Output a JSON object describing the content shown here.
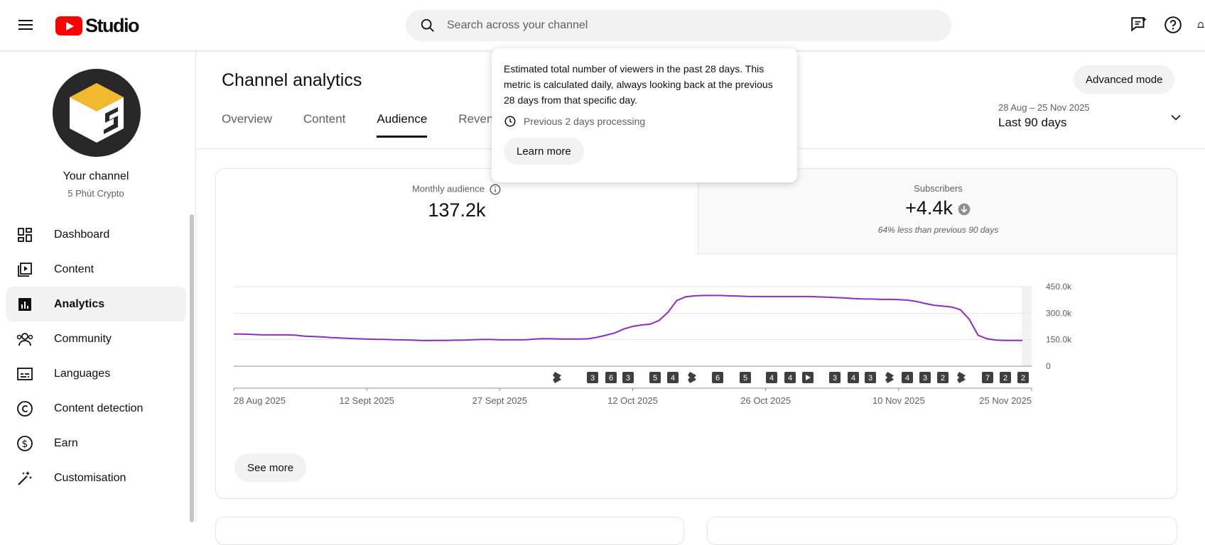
{
  "app": {
    "logo_text": "Studio"
  },
  "search": {
    "placeholder": "Search across your channel"
  },
  "channel": {
    "name": "Your channel",
    "handle": "5 Phút Crypto"
  },
  "sidebar": {
    "items": [
      {
        "label": "Dashboard",
        "icon": "dashboard-icon",
        "active": false
      },
      {
        "label": "Content",
        "icon": "content-icon",
        "active": false
      },
      {
        "label": "Analytics",
        "icon": "analytics-icon",
        "active": true
      },
      {
        "label": "Community",
        "icon": "community-icon",
        "active": false
      },
      {
        "label": "Languages",
        "icon": "languages-icon",
        "active": false
      },
      {
        "label": "Content detection",
        "icon": "copyright-icon",
        "active": false
      },
      {
        "label": "Earn",
        "icon": "earn-icon",
        "active": false
      },
      {
        "label": "Customisation",
        "icon": "customisation-icon",
        "active": false
      }
    ]
  },
  "page": {
    "title": "Channel analytics",
    "advanced_mode_label": "Advanced mode",
    "tabs": [
      {
        "label": "Overview",
        "active": false
      },
      {
        "label": "Content",
        "active": false
      },
      {
        "label": "Audience",
        "active": true
      },
      {
        "label": "Revenu",
        "active": false
      }
    ],
    "date_range": {
      "dates": "28 Aug – 25 Nov 2025",
      "label": "Last 90 days"
    }
  },
  "metrics": {
    "monthly_audience": {
      "label": "Monthly audience",
      "value": "137.2k"
    },
    "subscribers": {
      "label": "Subscribers",
      "value": "+4.4k",
      "note": "64% less than previous 90 days"
    }
  },
  "tooltip": {
    "text": "Estimated total number of viewers in the past 28 days. This metric is calculated daily, always looking back at the previous 28 days from that specific day.",
    "processing": "Previous 2 days processing",
    "learn_more_label": "Learn more"
  },
  "see_more_label": "See more",
  "colors": {
    "line": "#8a2ec0",
    "accent": "#ff0000"
  },
  "chart_data": {
    "type": "line",
    "xlabels": [
      "28 Aug 2025",
      "12 Sept 2025",
      "27 Sept 2025",
      "12 Oct 2025",
      "26 Oct 2025",
      "10 Nov 2025",
      "25 Nov 2025"
    ],
    "yticks": [
      "450.0k",
      "300.0k",
      "150.0k",
      "0"
    ],
    "ylim": [
      0,
      450000
    ],
    "grid": true,
    "series": [
      {
        "values": [
          182000,
          182000,
          180000,
          178000,
          177000,
          177000,
          177000,
          175000,
          170000,
          168000,
          166000,
          162000,
          160000,
          157000,
          155000,
          154000,
          152000,
          152000,
          150000,
          149000,
          148000,
          146000,
          145000,
          146000,
          146000,
          147000,
          148000,
          150000,
          151000,
          151000,
          149000,
          149000,
          149000,
          150000,
          154000,
          156000,
          155000,
          154000,
          154000,
          154000,
          155000,
          163000,
          175000,
          188000,
          210000,
          225000,
          233000,
          238000,
          259000,
          305000,
          372000,
          393000,
          398000,
          400000,
          400000,
          400000,
          398000,
          397000,
          395000,
          394000,
          394000,
          394000,
          394000,
          394000,
          394000,
          394000,
          392000,
          391000,
          388000,
          386000,
          383000,
          381000,
          380000,
          378000,
          378000,
          377000,
          374000,
          367000,
          355000,
          345000,
          340000,
          335000,
          320000,
          265000,
          175000,
          155000,
          148000,
          146000,
          146000,
          146000
        ]
      }
    ],
    "markers": [
      "shorts",
      "3",
      "6",
      "3",
      "5",
      "4",
      "shorts",
      "6",
      "5",
      "4",
      "4",
      "video",
      "3",
      "4",
      "3",
      "shorts",
      "4",
      "3",
      "2",
      "shorts",
      "7",
      "2",
      "2"
    ]
  }
}
